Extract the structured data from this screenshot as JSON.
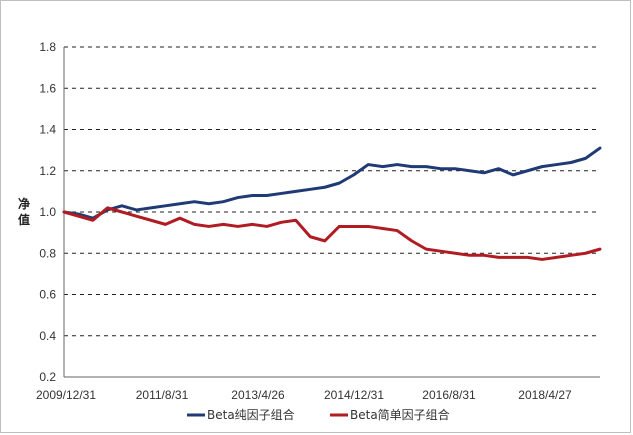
{
  "chart_data": {
    "type": "line",
    "title": "",
    "xlabel": "",
    "ylabel": "净值",
    "ylim": [
      0.2,
      1.8
    ],
    "yticks": [
      "0.2",
      "0.4",
      "0.6",
      "0.8",
      "1.0",
      "1.2",
      "1.4",
      "1.6",
      "1.8"
    ],
    "xtick_labels": [
      "2009/12/31",
      "2011/8/31",
      "2013/4/26",
      "2014/12/31",
      "2016/8/31",
      "2018/4/27"
    ],
    "grid": "horizontal-dashed",
    "legend_position": "bottom",
    "x": [
      "2009/12/31",
      "2010/3/31",
      "2010/6/30",
      "2010/9/30",
      "2010/12/31",
      "2011/3/31",
      "2011/6/30",
      "2011/9/30",
      "2011/12/31",
      "2012/3/31",
      "2012/6/30",
      "2012/9/30",
      "2012/12/31",
      "2013/3/31",
      "2013/6/30",
      "2013/9/30",
      "2013/12/31",
      "2014/3/31",
      "2014/6/30",
      "2014/9/30",
      "2014/12/31",
      "2015/3/31",
      "2015/6/30",
      "2015/9/30",
      "2015/12/31",
      "2016/3/31",
      "2016/6/30",
      "2016/9/30",
      "2016/12/31",
      "2017/3/31",
      "2017/6/30",
      "2017/9/30",
      "2017/12/31",
      "2018/3/31",
      "2018/6/30",
      "2018/9/30",
      "2018/12/31",
      "2019/3/31"
    ],
    "series": [
      {
        "name": "Beta纯因子组合",
        "color": "#1f3a74",
        "values": [
          1.0,
          0.99,
          0.97,
          1.01,
          1.03,
          1.01,
          1.02,
          1.03,
          1.04,
          1.05,
          1.04,
          1.05,
          1.07,
          1.08,
          1.08,
          1.09,
          1.1,
          1.11,
          1.12,
          1.14,
          1.18,
          1.23,
          1.22,
          1.23,
          1.22,
          1.22,
          1.21,
          1.21,
          1.2,
          1.19,
          1.21,
          1.18,
          1.2,
          1.22,
          1.23,
          1.24,
          1.26,
          1.31
        ]
      },
      {
        "name": "Beta简单因子组合",
        "color": "#b01c22",
        "values": [
          1.0,
          0.98,
          0.96,
          1.02,
          1.0,
          0.98,
          0.96,
          0.94,
          0.97,
          0.94,
          0.93,
          0.94,
          0.93,
          0.94,
          0.93,
          0.95,
          0.96,
          0.88,
          0.86,
          0.93,
          0.93,
          0.93,
          0.92,
          0.91,
          0.86,
          0.82,
          0.81,
          0.8,
          0.79,
          0.79,
          0.78,
          0.78,
          0.78,
          0.77,
          0.78,
          0.79,
          0.8,
          0.82
        ]
      }
    ]
  }
}
